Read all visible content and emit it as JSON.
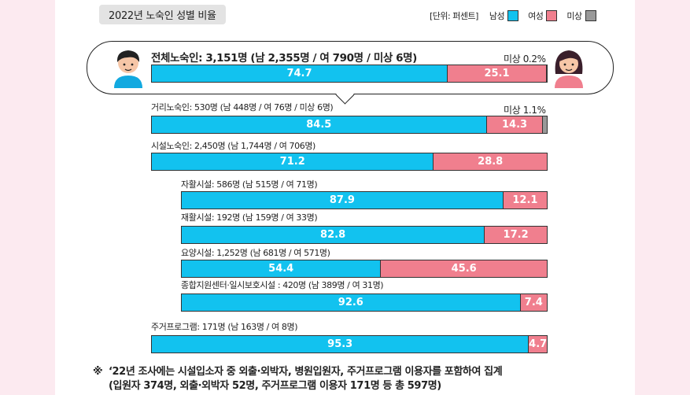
{
  "chart_data": {
    "type": "bar",
    "stacked": true,
    "title": "2022년 노숙인 성별 비율",
    "legend": {
      "unit": "[단위: 퍼센트]",
      "items": [
        {
          "name": "남성",
          "color": "#12c2ef"
        },
        {
          "name": "여성",
          "color": "#f07f8e"
        },
        {
          "name": "미상",
          "color": "#999999"
        }
      ]
    },
    "bars": [
      {
        "label": "전체노숙인: 3,151명 (남 2,355명 / 여 790명 / 미상 6명)",
        "male": 74.7,
        "female": 25.1,
        "unknown": 0.2,
        "unknown_label": "미상 0.2%"
      },
      {
        "label": "거리노숙인: 530명 (남 448명 / 여 76명 / 미상 6명)",
        "male": 84.5,
        "female": 14.3,
        "unknown": 1.1,
        "unknown_label": "미상 1.1%"
      },
      {
        "label": "시설노숙인: 2,450명 (남 1,744명 / 여 706명)",
        "male": 71.2,
        "female": 28.8
      },
      {
        "label": "자활시설: 586명 (남 515명 / 여 71명)",
        "male": 87.9,
        "female": 12.1
      },
      {
        "label": "재활시설: 192명 (남 159명 / 여 33명)",
        "male": 82.8,
        "female": 17.2
      },
      {
        "label": "요양시설: 1,252명 (남 681명 / 여 571명)",
        "male": 54.4,
        "female": 45.6
      },
      {
        "label": "종합지원센터·일시보호시설 : 420명 (남 389명 / 여 31명)",
        "male": 92.6,
        "female": 7.4
      },
      {
        "label": "주거프로그램: 171명 (남 163명 / 여 8명)",
        "male": 95.3,
        "female": 4.7
      }
    ]
  },
  "note": {
    "symbol": "※",
    "line1": "‘22년 조사에는 시설입소자 중 외출·외박자, 병원입원자, 주거프로그램 이용자를 포함하여 집계",
    "line2": "(입원자 374명, 외출·외박자 52명, 주거프로그램 이용자 171명 등 총 597명)"
  }
}
